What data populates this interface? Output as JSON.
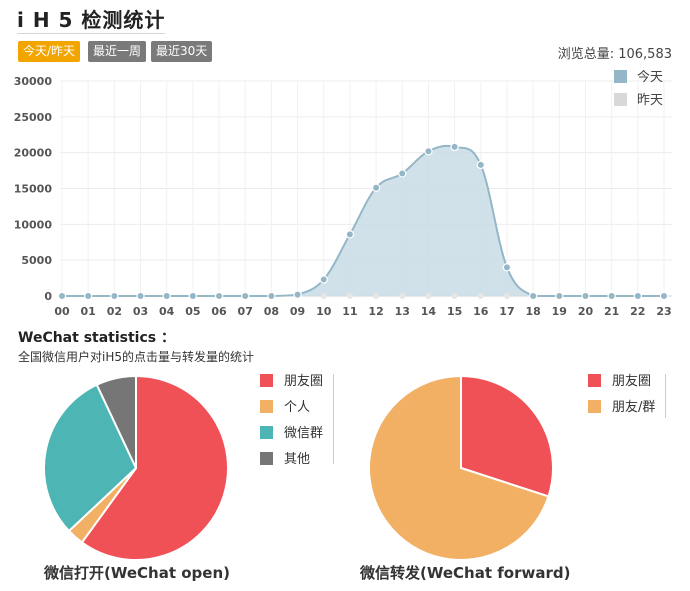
{
  "header": {
    "title": "i H 5 检测统计"
  },
  "tabs": [
    {
      "label": "今天/昨天",
      "active": true
    },
    {
      "label": "最近一周",
      "active": false
    },
    {
      "label": "最近30天",
      "active": false
    }
  ],
  "summary": {
    "views_total_label": "浏览总量: 106,583"
  },
  "colors": {
    "accent": "#f2a500",
    "today": "#95b6c7",
    "today_fill": "#c8dce6",
    "yesterday": "#d8d8d8",
    "moments": "#ef5156",
    "personal": "#f2b064",
    "group": "#4db6b4",
    "other": "#767676"
  },
  "wechat": {
    "title": "WeChat statistics ：",
    "subtitle": "全国微信用户对iH5的点击量与转发量的统计"
  },
  "chart_data": [
    {
      "type": "area",
      "title": "",
      "xlabel": "",
      "ylabel": "",
      "x": [
        "00",
        "01",
        "02",
        "03",
        "04",
        "05",
        "06",
        "07",
        "08",
        "09",
        "10",
        "11",
        "12",
        "13",
        "14",
        "15",
        "16",
        "17",
        "18",
        "19",
        "20",
        "21",
        "22",
        "23"
      ],
      "series": [
        {
          "name": "今天",
          "values": [
            0,
            0,
            0,
            0,
            0,
            0,
            0,
            0,
            0,
            200,
            2300,
            8600,
            15100,
            17100,
            20200,
            20800,
            18300,
            4000,
            0,
            0,
            0,
            0,
            0,
            0
          ]
        },
        {
          "name": "昨天",
          "values": [
            0,
            0,
            0,
            0,
            0,
            0,
            0,
            0,
            0,
            0,
            0,
            0,
            0,
            0,
            0,
            0,
            0,
            0,
            0,
            0,
            0,
            0,
            0,
            0
          ]
        }
      ],
      "yticks": [
        0,
        5000,
        10000,
        15000,
        20000,
        25000,
        30000
      ],
      "ylim": [
        0,
        30000
      ],
      "grid": true,
      "legend": "top-right"
    },
    {
      "type": "pie",
      "title": "微信打开(WeChat open)",
      "labels": [
        "朋友圈",
        "个人",
        "微信群",
        "其他"
      ],
      "values": [
        60,
        3,
        30,
        7
      ],
      "legend": "right"
    },
    {
      "type": "pie",
      "title": "微信转发(WeChat forward)",
      "labels": [
        "朋友圈",
        "朋友/群"
      ],
      "values": [
        30,
        70
      ],
      "legend": "right"
    }
  ]
}
